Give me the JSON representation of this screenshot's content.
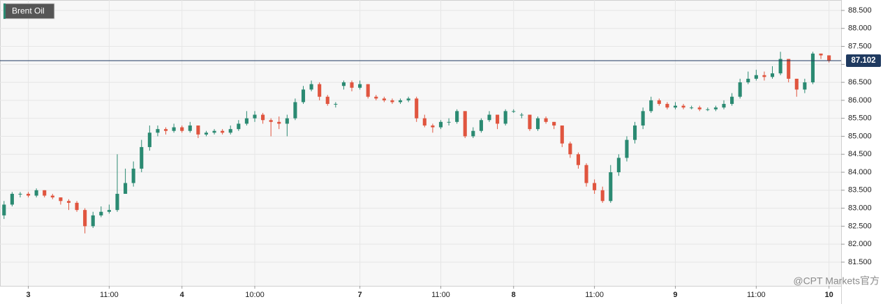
{
  "chart_data": {
    "type": "candlestick",
    "title": "Brent Oil",
    "watermark": "@CPT Markets官方",
    "categories": [
      null,
      null,
      null,
      "3",
      null,
      null,
      null,
      null,
      null,
      null,
      null,
      null,
      null,
      "11:00",
      null,
      null,
      null,
      null,
      null,
      null,
      null,
      null,
      "4",
      null,
      null,
      null,
      null,
      null,
      null,
      null,
      null,
      "10:00",
      null,
      null,
      null,
      null,
      null,
      null,
      null,
      null,
      null,
      null,
      null,
      null,
      "7",
      null,
      null,
      null,
      null,
      null,
      null,
      null,
      null,
      null,
      "11:00",
      null,
      null,
      null,
      null,
      null,
      null,
      null,
      null,
      "8",
      null,
      null,
      null,
      null,
      null,
      null,
      null,
      null,
      null,
      "11:00",
      null,
      null,
      null,
      null,
      null,
      null,
      null,
      null,
      null,
      "9",
      null,
      null,
      null,
      null,
      null,
      null,
      null,
      null,
      null,
      "11:00",
      null,
      null,
      null,
      null,
      null,
      null,
      null,
      null,
      "10"
    ],
    "open": [
      82.8,
      83.1,
      83.4,
      83.4,
      83.35,
      83.5,
      83.35,
      83.3,
      83.2,
      83.15,
      82.95,
      82.5,
      82.8,
      82.9,
      82.95,
      83.4,
      83.7,
      84.1,
      84.7,
      85.1,
      85.2,
      85.15,
      85.25,
      85.15,
      85.3,
      85.05,
      85.1,
      85.15,
      85.1,
      85.2,
      85.35,
      85.5,
      85.6,
      85.45,
      85.4,
      85.35,
      85.5,
      85.95,
      86.3,
      86.45,
      86.1,
      85.9,
      86.4,
      86.5,
      86.35,
      86.45,
      86.1,
      86.05,
      86.0,
      85.95,
      86.0,
      86.05,
      85.5,
      85.3,
      85.25,
      85.4,
      85.4,
      85.7,
      85.0,
      85.15,
      85.45,
      85.6,
      85.35,
      85.7,
      85.6,
      85.6,
      85.2,
      85.5,
      85.4,
      85.3,
      84.8,
      84.5,
      84.2,
      83.7,
      83.5,
      83.2,
      84.0,
      84.4,
      84.9,
      85.3,
      85.7,
      86.0,
      85.9,
      85.8,
      85.85,
      85.8,
      85.8,
      85.75,
      85.75,
      85.8,
      85.9,
      86.1,
      86.5,
      86.6,
      86.7,
      86.65,
      86.75,
      87.15,
      86.6,
      86.3,
      86.5,
      87.3,
      87.25
    ],
    "high": [
      83.2,
      83.45,
      83.45,
      83.45,
      83.55,
      83.5,
      83.4,
      83.3,
      83.25,
      83.2,
      83.0,
      82.9,
      83.05,
      83.1,
      84.5,
      84.1,
      84.3,
      84.9,
      85.3,
      85.3,
      85.25,
      85.35,
      85.3,
      85.4,
      85.3,
      85.15,
      85.2,
      85.2,
      85.3,
      85.45,
      85.7,
      85.7,
      85.65,
      85.5,
      85.55,
      85.6,
      86.05,
      86.4,
      86.55,
      86.5,
      86.15,
      85.95,
      86.55,
      86.55,
      86.55,
      86.45,
      86.15,
      86.1,
      86.05,
      86.05,
      86.1,
      86.1,
      85.6,
      85.35,
      85.45,
      85.5,
      85.75,
      85.7,
      85.25,
      85.5,
      85.7,
      85.6,
      85.75,
      85.75,
      85.65,
      85.6,
      85.55,
      85.55,
      85.4,
      85.3,
      84.85,
      84.55,
      84.25,
      83.8,
      83.6,
      84.2,
      84.5,
      85.0,
      85.4,
      85.8,
      86.1,
      86.05,
      85.95,
      85.95,
      85.9,
      85.85,
      85.85,
      85.8,
      85.85,
      86.0,
      86.2,
      86.6,
      86.8,
      86.85,
      86.8,
      86.95,
      87.35,
      87.15,
      86.6,
      86.6,
      87.35,
      87.3,
      87.25
    ],
    "low": [
      82.7,
      83.05,
      83.3,
      83.3,
      83.3,
      83.3,
      83.25,
      83.1,
      82.95,
      82.9,
      82.3,
      82.45,
      82.75,
      82.85,
      82.9,
      83.4,
      83.6,
      84.0,
      84.6,
      85.0,
      85.05,
      85.1,
      85.1,
      85.1,
      84.95,
      85.0,
      85.05,
      85.05,
      85.05,
      85.15,
      85.3,
      85.4,
      85.35,
      85.0,
      85.2,
      85.0,
      85.45,
      85.9,
      86.25,
      86.0,
      85.85,
      85.8,
      86.3,
      86.25,
      86.3,
      86.05,
      86.0,
      85.95,
      85.9,
      85.9,
      85.95,
      85.4,
      85.25,
      85.1,
      85.2,
      85.3,
      85.35,
      84.95,
      84.95,
      85.1,
      85.4,
      85.2,
      85.3,
      85.65,
      85.5,
      85.15,
      85.15,
      85.35,
      85.2,
      84.7,
      84.4,
      84.1,
      83.6,
      83.4,
      83.15,
      83.15,
      83.9,
      84.3,
      84.8,
      85.2,
      85.65,
      85.85,
      85.75,
      85.75,
      85.75,
      85.75,
      85.7,
      85.7,
      85.7,
      85.75,
      85.85,
      86.05,
      86.45,
      86.55,
      86.55,
      86.6,
      86.7,
      86.5,
      86.1,
      86.2,
      86.45,
      87.15,
      87.05
    ],
    "close": [
      83.1,
      83.4,
      83.4,
      83.35,
      83.5,
      83.35,
      83.3,
      83.2,
      83.15,
      82.95,
      82.5,
      82.8,
      82.9,
      82.95,
      83.4,
      83.7,
      84.1,
      84.7,
      85.1,
      85.2,
      85.15,
      85.25,
      85.15,
      85.3,
      85.05,
      85.1,
      85.15,
      85.1,
      85.2,
      85.35,
      85.5,
      85.6,
      85.45,
      85.4,
      85.35,
      85.5,
      85.95,
      86.3,
      86.45,
      86.1,
      85.9,
      85.9,
      86.5,
      86.35,
      86.45,
      86.1,
      86.05,
      86.0,
      85.95,
      86.0,
      86.05,
      85.5,
      85.3,
      85.25,
      85.4,
      85.4,
      85.7,
      85.0,
      85.15,
      85.45,
      85.6,
      85.35,
      85.7,
      85.7,
      85.6,
      85.2,
      85.5,
      85.4,
      85.3,
      84.8,
      84.5,
      84.2,
      83.7,
      83.5,
      83.2,
      84.0,
      84.4,
      84.9,
      85.3,
      85.7,
      86.0,
      85.9,
      85.8,
      85.85,
      85.8,
      85.8,
      85.75,
      85.75,
      85.8,
      85.9,
      86.1,
      86.5,
      86.6,
      86.7,
      86.65,
      86.75,
      87.15,
      86.6,
      86.3,
      86.5,
      87.3,
      87.25,
      87.1
    ],
    "up_color": "#2b8a72",
    "down_color": "#e0553f",
    "current_price": 87.102,
    "price_line_color": "#1f3a60",
    "ylim": [
      80.84,
      88.79
    ],
    "yticks": [
      {
        "value": 81.5,
        "label": "81.500"
      },
      {
        "value": 82,
        "label": "82.000"
      },
      {
        "value": 82.5,
        "label": "82.500"
      },
      {
        "value": 83,
        "label": "83.000"
      },
      {
        "value": 83.5,
        "label": "83.500"
      },
      {
        "value": 84,
        "label": "84.000"
      },
      {
        "value": 84.5,
        "label": "84.500"
      },
      {
        "value": 85,
        "label": "85.000"
      },
      {
        "value": 85.5,
        "label": "85.500"
      },
      {
        "value": 86,
        "label": "86.000"
      },
      {
        "value": 86.5,
        "label": "86.500"
      },
      {
        "value": 87,
        "label": "87.000"
      },
      {
        "value": 87.5,
        "label": "87.500"
      },
      {
        "value": 88,
        "label": "88.000"
      },
      {
        "value": 88.5,
        "label": "88.500"
      }
    ],
    "grid": true
  }
}
